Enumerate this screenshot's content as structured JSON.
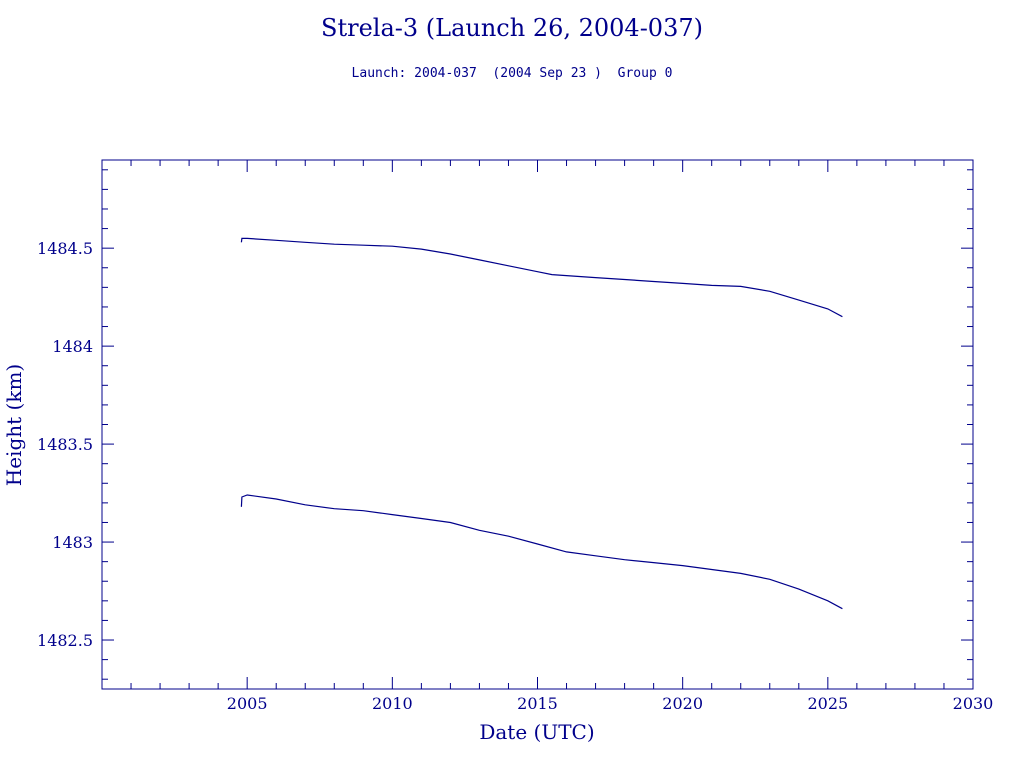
{
  "chart_data": {
    "type": "line",
    "title": "Strela-3 (Launch 26, 2004-037)",
    "subtitle": "Launch: 2004-037  (2004 Sep 23 )  Group 0",
    "xlabel": "Date (UTC)",
    "ylabel": "Height (km)",
    "xlim": [
      2000,
      2030
    ],
    "ylim": [
      1482.25,
      1484.95
    ],
    "x_ticks": [
      2005,
      2010,
      2015,
      2020,
      2025,
      2030
    ],
    "y_ticks": [
      1482.5,
      1483,
      1483.5,
      1484,
      1484.5
    ],
    "x_tick_labels": [
      "2005",
      "2010",
      "2015",
      "2020",
      "2025",
      "2030"
    ],
    "y_tick_labels": [
      "1482.5",
      "1483",
      "1483.5",
      "1484",
      "1484.5"
    ],
    "grid": false,
    "color": "#00008b",
    "series": [
      {
        "x": [
          2004.8,
          2004.82,
          2005,
          2006,
          2007,
          2008,
          2009,
          2010,
          2011,
          2012,
          2013,
          2014,
          2015,
          2015.5,
          2016,
          2017,
          2018,
          2019,
          2020,
          2021,
          2022,
          2023,
          2024,
          2025,
          2025.5
        ],
        "y": [
          1484.53,
          1484.55,
          1484.55,
          1484.54,
          1484.53,
          1484.52,
          1484.515,
          1484.51,
          1484.495,
          1484.47,
          1484.44,
          1484.41,
          1484.38,
          1484.365,
          1484.36,
          1484.35,
          1484.34,
          1484.33,
          1484.32,
          1484.31,
          1484.305,
          1484.28,
          1484.235,
          1484.19,
          1484.15
        ]
      },
      {
        "x": [
          2004.8,
          2004.82,
          2005,
          2006,
          2007,
          2008,
          2009,
          2010,
          2011,
          2012,
          2013,
          2014,
          2015,
          2016,
          2017,
          2018,
          2019,
          2020,
          2021,
          2022,
          2023,
          2024,
          2025,
          2025.5
        ],
        "y": [
          1483.18,
          1483.23,
          1483.24,
          1483.22,
          1483.19,
          1483.17,
          1483.16,
          1483.14,
          1483.12,
          1483.1,
          1483.06,
          1483.03,
          1482.99,
          1482.95,
          1482.93,
          1482.91,
          1482.895,
          1482.88,
          1482.86,
          1482.84,
          1482.81,
          1482.76,
          1482.7,
          1482.66
        ]
      }
    ]
  }
}
